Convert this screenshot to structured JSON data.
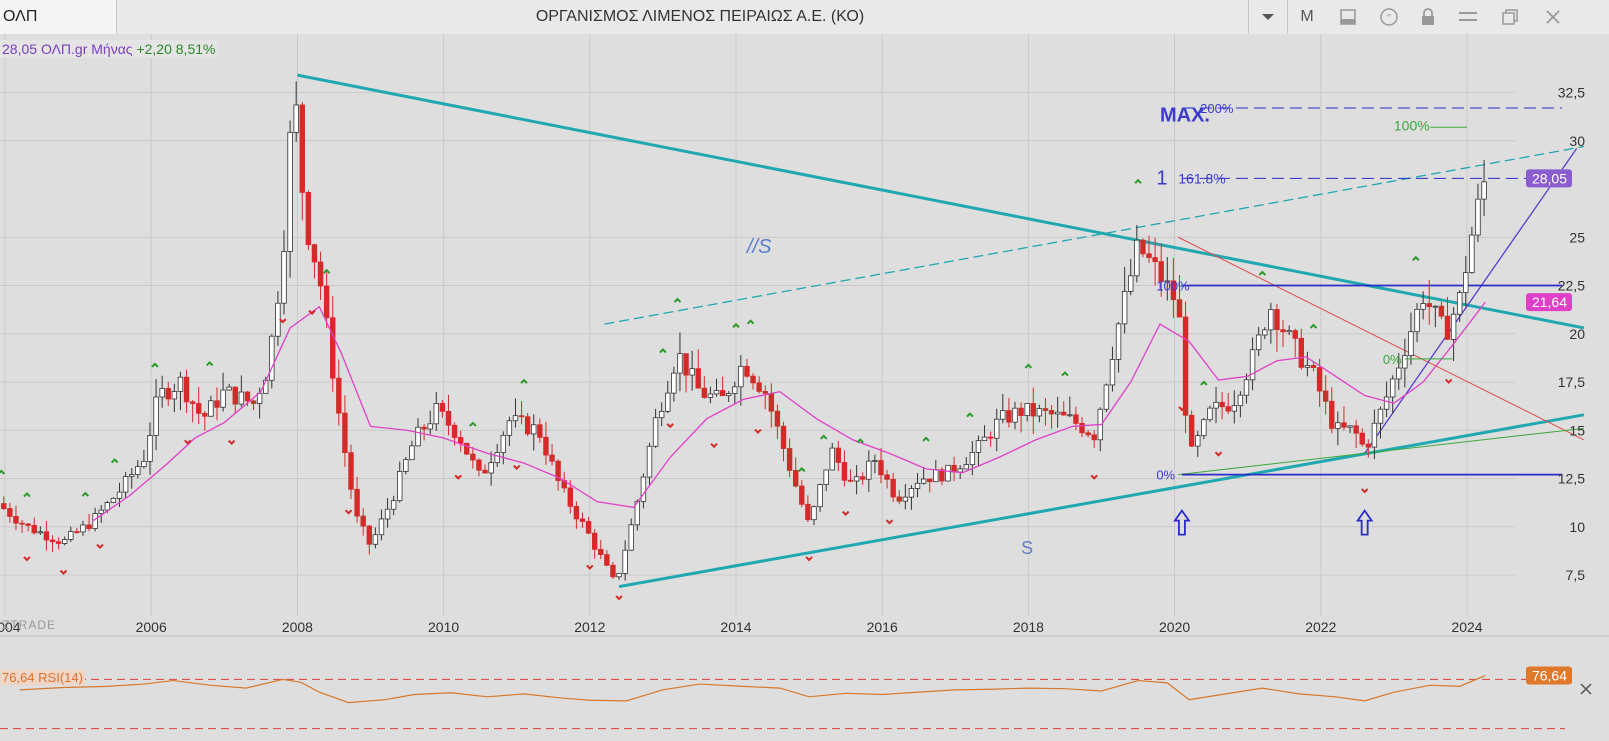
{
  "window": {
    "symbol_tab": "ΟΛΠ",
    "title": "ΟΡΓΑΝΙΣΜΟΣ ΛΙΜΕΝΟΣ ΠΕΙΡΑΙΩΣ Α.Ε. (ΚΟ)",
    "period_button": "M",
    "icons": [
      "chevron-down-icon",
      "panel-icon",
      "quote-icon",
      "lock-icon",
      "menu-icon",
      "restore-icon",
      "close-icon"
    ]
  },
  "legend": {
    "price": "28,05",
    "symbol": "ΟΛΠ.gr Μήνας",
    "change": "+2,20 8,51%"
  },
  "brand": "ZTRADE",
  "rsi": {
    "label": "76,64 RSI(14)",
    "value_tag": "76,64",
    "upper_line": 70,
    "lower_line": 30
  },
  "price_tags": {
    "last": "28,05",
    "ma": "21,64"
  },
  "annotations": {
    "max": "MAX.",
    "fib200": "200%",
    "fib161": "161.8%",
    "one": "1",
    "green100": "100%",
    "fib100": "100%",
    "fib0": "0%",
    "green0": "0%",
    "trend_s": "//S",
    "support_s": "S"
  },
  "colors": {
    "up": "#ffffff",
    "down": "#d42a2a",
    "ma": "#e040c8",
    "trend": "#20a8b0",
    "fib": "#2b2bc8",
    "rsi": "#d8782a",
    "grid": "#c9c9c9"
  },
  "chart_data": {
    "type": "candlestick",
    "title": "ΟΡΓΑΝΙΣΜΟΣ ΛΙΜΕΝΟΣ ΠΕΙΡΑΙΩΣ Α.Ε. (ΚΟ)",
    "ylim": [
      6,
      33.8
    ],
    "y_ticks": [
      "7,5",
      "10",
      "12,5",
      "15",
      "17,5",
      "20",
      "22,5",
      "25",
      "30",
      "32,5"
    ],
    "y_tick_values": [
      7.5,
      10,
      12.5,
      15,
      17.5,
      20,
      22.5,
      25,
      30,
      32.5
    ],
    "x_ticks": [
      "2004",
      "2006",
      "2008",
      "2010",
      "2012",
      "2014",
      "2016",
      "2018",
      "2020",
      "2022",
      "2024"
    ],
    "x_tick_values": [
      2004,
      2006,
      2008,
      2010,
      2012,
      2014,
      2016,
      2018,
      2020,
      2022,
      2024
    ],
    "last_price": 28.05,
    "ma_value": 21.64,
    "rsi_value": 76.64,
    "close_series": [
      [
        2003.9,
        11.2
      ],
      [
        2004.3,
        10.0
      ],
      [
        2004.8,
        9.2
      ],
      [
        2005.2,
        10.3
      ],
      [
        2005.6,
        12.0
      ],
      [
        2005.9,
        13.6
      ],
      [
        2006.1,
        16.8
      ],
      [
        2006.4,
        17.5
      ],
      [
        2006.7,
        15.6
      ],
      [
        2007.0,
        17.0
      ],
      [
        2007.4,
        16.4
      ],
      [
        2007.6,
        18.3
      ],
      [
        2007.8,
        24.0
      ],
      [
        2007.95,
        33.0
      ],
      [
        2008.1,
        26.0
      ],
      [
        2008.3,
        23.0
      ],
      [
        2008.6,
        15.0
      ],
      [
        2008.8,
        10.5
      ],
      [
        2009.0,
        9.0
      ],
      [
        2009.3,
        11.5
      ],
      [
        2009.6,
        14.5
      ],
      [
        2009.9,
        16.0
      ],
      [
        2010.2,
        14.8
      ],
      [
        2010.5,
        12.5
      ],
      [
        2010.9,
        15.5
      ],
      [
        2011.3,
        15.0
      ],
      [
        2011.6,
        12.0
      ],
      [
        2012.0,
        9.5
      ],
      [
        2012.35,
        7.0
      ],
      [
        2012.6,
        10.5
      ],
      [
        2012.9,
        15.5
      ],
      [
        2013.2,
        19.0
      ],
      [
        2013.5,
        17.0
      ],
      [
        2013.8,
        16.5
      ],
      [
        2014.1,
        18.5
      ],
      [
        2014.4,
        17.0
      ],
      [
        2014.7,
        13.5
      ],
      [
        2015.0,
        10.0
      ],
      [
        2015.3,
        14.0
      ],
      [
        2015.6,
        12.0
      ],
      [
        2015.9,
        13.5
      ],
      [
        2016.2,
        11.5
      ],
      [
        2016.5,
        12.5
      ],
      [
        2016.9,
        12.8
      ],
      [
        2017.3,
        14.0
      ],
      [
        2017.6,
        15.5
      ],
      [
        2017.9,
        16.0
      ],
      [
        2018.3,
        15.8
      ],
      [
        2018.6,
        15.5
      ],
      [
        2018.9,
        14.8
      ],
      [
        2019.2,
        20.0
      ],
      [
        2019.5,
        24.5
      ],
      [
        2019.8,
        23.0
      ],
      [
        2020.05,
        21.5
      ],
      [
        2020.2,
        13.5
      ],
      [
        2020.5,
        16.0
      ],
      [
        2020.8,
        16.5
      ],
      [
        2021.1,
        19.0
      ],
      [
        2021.3,
        21.5
      ],
      [
        2021.6,
        19.5
      ],
      [
        2021.9,
        17.8
      ],
      [
        2022.2,
        15.0
      ],
      [
        2022.45,
        15.0
      ],
      [
        2022.6,
        14.0
      ],
      [
        2022.85,
        16.2
      ],
      [
        2023.1,
        18.8
      ],
      [
        2023.4,
        22.0
      ],
      [
        2023.7,
        20.0
      ],
      [
        2023.9,
        21.8
      ],
      [
        2024.1,
        25.8
      ],
      [
        2024.25,
        28.05
      ]
    ],
    "ma_series": [
      [
        2005.2,
        10.3
      ],
      [
        2005.7,
        11.6
      ],
      [
        2006.2,
        13.2
      ],
      [
        2006.6,
        14.6
      ],
      [
        2007.0,
        15.4
      ],
      [
        2007.5,
        17.0
      ],
      [
        2007.9,
        20.3
      ],
      [
        2008.3,
        21.4
      ],
      [
        2008.6,
        19.0
      ],
      [
        2009.0,
        15.2
      ],
      [
        2009.5,
        15.0
      ],
      [
        2010.0,
        14.6
      ],
      [
        2010.6,
        13.8
      ],
      [
        2011.1,
        13.3
      ],
      [
        2011.6,
        12.5
      ],
      [
        2012.1,
        11.3
      ],
      [
        2012.6,
        11.0
      ],
      [
        2013.1,
        13.6
      ],
      [
        2013.6,
        15.6
      ],
      [
        2014.1,
        16.6
      ],
      [
        2014.6,
        17.0
      ],
      [
        2015.1,
        15.6
      ],
      [
        2015.6,
        14.5
      ],
      [
        2016.1,
        13.8
      ],
      [
        2016.6,
        13.0
      ],
      [
        2017.1,
        12.8
      ],
      [
        2017.6,
        13.6
      ],
      [
        2018.1,
        14.5
      ],
      [
        2018.6,
        15.2
      ],
      [
        2019.0,
        15.3
      ],
      [
        2019.4,
        17.5
      ],
      [
        2019.8,
        20.5
      ],
      [
        2020.2,
        19.6
      ],
      [
        2020.6,
        17.6
      ],
      [
        2021.0,
        17.8
      ],
      [
        2021.4,
        18.6
      ],
      [
        2021.8,
        18.8
      ],
      [
        2022.2,
        17.8
      ],
      [
        2022.6,
        16.8
      ],
      [
        2023.0,
        16.4
      ],
      [
        2023.4,
        17.5
      ],
      [
        2023.8,
        19.4
      ],
      [
        2024.25,
        21.64
      ]
    ],
    "rsi_series": [
      [
        2004.2,
        52
      ],
      [
        2004.8,
        56
      ],
      [
        2005.4,
        58
      ],
      [
        2005.9,
        62
      ],
      [
        2006.3,
        68
      ],
      [
        2006.8,
        60
      ],
      [
        2007.3,
        55
      ],
      [
        2007.8,
        70
      ],
      [
        2008.05,
        65
      ],
      [
        2008.3,
        48
      ],
      [
        2008.7,
        30
      ],
      [
        2009.2,
        35
      ],
      [
        2009.6,
        44
      ],
      [
        2010.1,
        47
      ],
      [
        2010.6,
        40
      ],
      [
        2011.1,
        45
      ],
      [
        2011.6,
        38
      ],
      [
        2012.0,
        34
      ],
      [
        2012.5,
        33
      ],
      [
        2013.0,
        52
      ],
      [
        2013.5,
        62
      ],
      [
        2014.1,
        58
      ],
      [
        2014.6,
        55
      ],
      [
        2015.0,
        40
      ],
      [
        2015.5,
        46
      ],
      [
        2016.0,
        44
      ],
      [
        2016.5,
        48
      ],
      [
        2017.0,
        52
      ],
      [
        2017.5,
        53
      ],
      [
        2018.0,
        55
      ],
      [
        2018.5,
        54
      ],
      [
        2019.0,
        50
      ],
      [
        2019.5,
        68
      ],
      [
        2019.9,
        64
      ],
      [
        2020.2,
        35
      ],
      [
        2020.7,
        45
      ],
      [
        2021.2,
        55
      ],
      [
        2021.7,
        45
      ],
      [
        2022.2,
        40
      ],
      [
        2022.6,
        33
      ],
      [
        2023.0,
        48
      ],
      [
        2023.5,
        60
      ],
      [
        2023.9,
        58
      ],
      [
        2024.25,
        76.64
      ]
    ],
    "trendlines": [
      {
        "from": [
          2008.0,
          33.4
        ],
        "to": [
          2025.6,
          20.3
        ],
        "style": "thick"
      },
      {
        "from": [
          2012.4,
          6.9
        ],
        "to": [
          2025.6,
          15.8
        ],
        "style": "thick"
      },
      {
        "from": [
          2012.2,
          20.5
        ],
        "to": [
          2025.6,
          29.7
        ],
        "style": "dashed"
      },
      {
        "from": [
          2020.05,
          25.0
        ],
        "to": [
          2025.6,
          14.5
        ],
        "style": "thin-red"
      },
      {
        "from": [
          2022.6,
          13.8
        ],
        "to": [
          2025.5,
          29.6
        ],
        "style": "thin-purple"
      }
    ],
    "fib_levels": [
      {
        "label": "200%",
        "value": 31.7
      },
      {
        "label": "161.8%",
        "value": 28.05
      },
      {
        "label": "100%",
        "value": 22.5
      },
      {
        "label": "0%",
        "value": 12.7
      }
    ],
    "rsi_ylim": [
      0,
      100
    ]
  }
}
